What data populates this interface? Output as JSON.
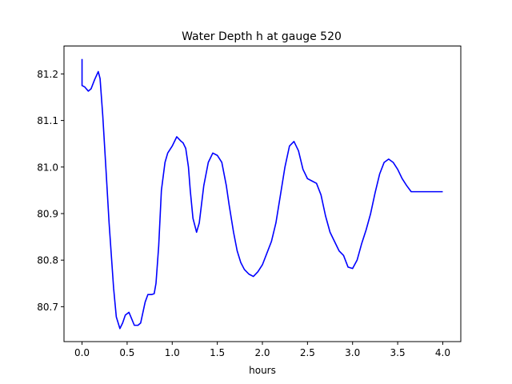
{
  "chart_data": {
    "type": "line",
    "title": "Water Depth h at gauge 520",
    "xlabel": "hours",
    "ylabel": "",
    "xlim": [
      -0.2,
      4.2
    ],
    "ylim": [
      80.625,
      81.26
    ],
    "xticks": [
      0.0,
      0.5,
      1.0,
      1.5,
      2.0,
      2.5,
      3.0,
      3.5,
      4.0
    ],
    "xtick_labels": [
      "0.0",
      "0.5",
      "1.0",
      "1.5",
      "2.0",
      "2.5",
      "3.0",
      "3.5",
      "4.0"
    ],
    "yticks": [
      80.7,
      80.8,
      80.9,
      81.0,
      81.1,
      81.2
    ],
    "ytick_labels": [
      "80.7",
      "80.8",
      "80.9",
      "81.0",
      "81.1",
      "81.2"
    ],
    "grid": false,
    "series": [
      {
        "color": "#0000ff",
        "x": [
          0.0,
          0.0,
          0.03,
          0.07,
          0.1,
          0.14,
          0.18,
          0.2,
          0.23,
          0.27,
          0.3,
          0.35,
          0.38,
          0.42,
          0.45,
          0.48,
          0.52,
          0.55,
          0.58,
          0.62,
          0.65,
          0.7,
          0.73,
          0.77,
          0.8,
          0.82,
          0.85,
          0.88,
          0.92,
          0.95,
          1.0,
          1.05,
          1.1,
          1.12,
          1.15,
          1.18,
          1.2,
          1.23,
          1.27,
          1.3,
          1.35,
          1.4,
          1.45,
          1.5,
          1.55,
          1.6,
          1.63,
          1.68,
          1.72,
          1.76,
          1.8,
          1.85,
          1.9,
          1.95,
          2.0,
          2.05,
          2.1,
          2.15,
          2.2,
          2.25,
          2.3,
          2.35,
          2.4,
          2.45,
          2.5,
          2.55,
          2.6,
          2.65,
          2.7,
          2.75,
          2.8,
          2.85,
          2.9,
          2.95,
          3.0,
          3.05,
          3.1,
          3.15,
          3.2,
          3.25,
          3.3,
          3.35,
          3.4,
          3.45,
          3.5,
          3.55,
          3.6,
          3.65,
          3.7,
          3.75,
          3.8,
          3.85,
          3.9,
          3.95,
          4.0
        ],
        "y": [
          81.232,
          81.175,
          81.172,
          81.163,
          81.168,
          81.188,
          81.205,
          81.19,
          81.11,
          80.98,
          80.88,
          80.74,
          80.678,
          80.653,
          80.665,
          80.682,
          80.688,
          80.674,
          80.66,
          80.66,
          80.665,
          80.71,
          80.726,
          80.726,
          80.728,
          80.75,
          80.83,
          80.95,
          81.01,
          81.03,
          81.045,
          81.065,
          81.055,
          81.052,
          81.04,
          81.0,
          80.95,
          80.89,
          80.86,
          80.88,
          80.96,
          81.01,
          81.03,
          81.025,
          81.01,
          80.96,
          80.92,
          80.86,
          80.82,
          80.795,
          80.78,
          80.77,
          80.765,
          80.775,
          80.79,
          80.815,
          80.84,
          80.88,
          80.94,
          81.0,
          81.045,
          81.055,
          81.035,
          80.995,
          80.975,
          80.97,
          80.965,
          80.94,
          80.895,
          80.86,
          80.84,
          80.82,
          80.81,
          80.785,
          80.782,
          80.8,
          80.835,
          80.865,
          80.9,
          80.945,
          80.985,
          81.01,
          81.017,
          81.01,
          80.995,
          80.975,
          80.96,
          80.947,
          80.947,
          80.947,
          80.947,
          80.947,
          80.947,
          80.947,
          80.947
        ]
      }
    ]
  }
}
